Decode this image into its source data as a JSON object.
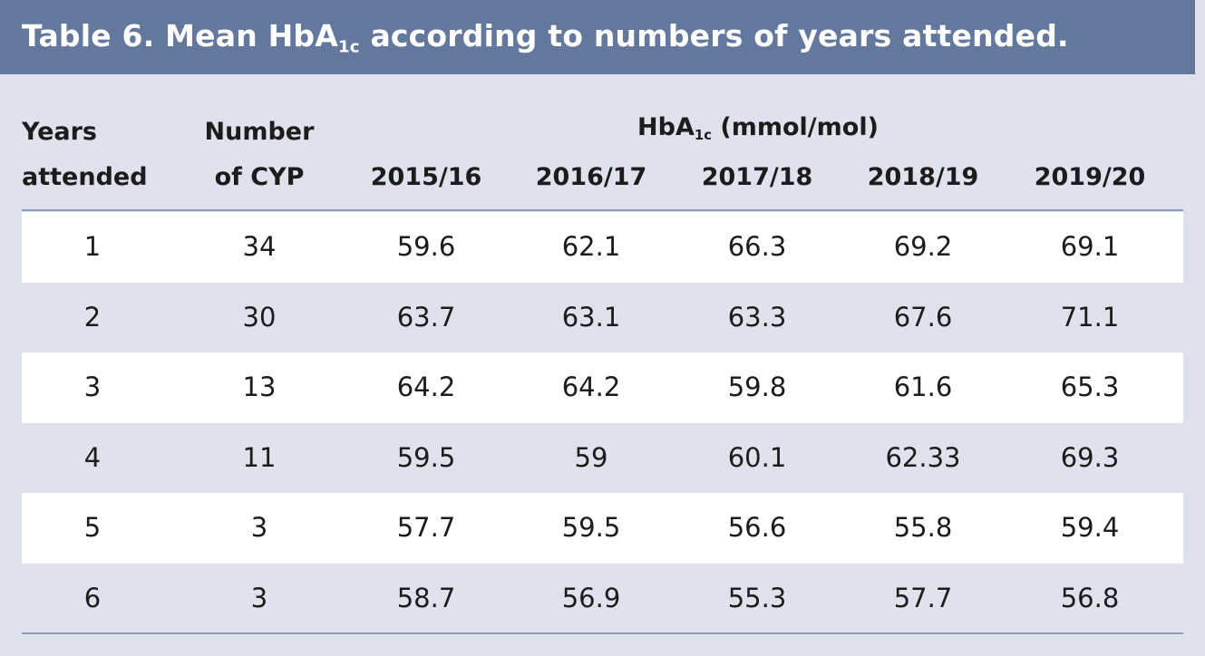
{
  "title": {
    "main": "Table 6. Mean HbA",
    "sub": "1c",
    "rest": " according to numbers of years attended."
  },
  "headers": {
    "years_line1": "Years",
    "years_line2": "attended",
    "number_line1": "Number",
    "number_line2": "of CYP",
    "hba_main": "HbA",
    "hba_sub": "1c",
    "hba_unit": " (mmol/mol)",
    "years": [
      "2015/16",
      "2016/17",
      "2017/18",
      "2018/19",
      "2019/20"
    ]
  },
  "rows": [
    [
      "1",
      "34",
      "59.6",
      "62.1",
      "66.3",
      "69.2",
      "69.1"
    ],
    [
      "2",
      "30",
      "63.7",
      "63.1",
      "63.3",
      "67.6",
      "71.1"
    ],
    [
      "3",
      "13",
      "64.2",
      "64.2",
      "59.8",
      "61.6",
      "65.3"
    ],
    [
      "4",
      "11",
      "59.5",
      "59",
      "60.1",
      "62.33",
      "69.3"
    ],
    [
      "5",
      "3",
      "57.7",
      "59.5",
      "56.6",
      "55.8",
      "59.4"
    ],
    [
      "6",
      "3",
      "58.7",
      "56.9",
      "55.3",
      "57.7",
      "56.8"
    ]
  ],
  "colors": {
    "title_bar": "#64789d",
    "background": "#dfe2ec",
    "row_alt": "#ffffff",
    "rule": "#8d9ab6"
  }
}
